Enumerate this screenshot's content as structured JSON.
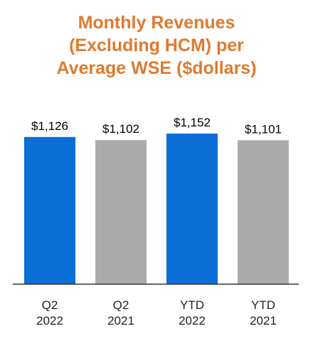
{
  "chart_data": {
    "type": "bar",
    "title_lines": [
      "Monthly Revenues",
      "(Excluding HCM) per",
      "Average WSE ($dollars)"
    ],
    "title": "Monthly Revenues (Excluding HCM) per Average WSE ($dollars)",
    "categories": [
      [
        "Q2",
        "2022"
      ],
      [
        "Q2",
        "2021"
      ],
      [
        "YTD",
        "2022"
      ],
      [
        "YTD",
        "2021"
      ]
    ],
    "values": [
      1126,
      1102,
      1152,
      1101
    ],
    "value_labels": [
      "$1,126",
      "$1,102",
      "$1,152",
      "$1,101"
    ],
    "bar_colors": [
      "#0A6FD6",
      "#ABABAB",
      "#0A6FD6",
      "#ABABAB"
    ],
    "xlabel": "",
    "ylabel": "",
    "ylim": [
      0,
      1250
    ],
    "grid": false,
    "legend": "none",
    "title_color": "#E07A2E",
    "axis_color": "#333333"
  }
}
